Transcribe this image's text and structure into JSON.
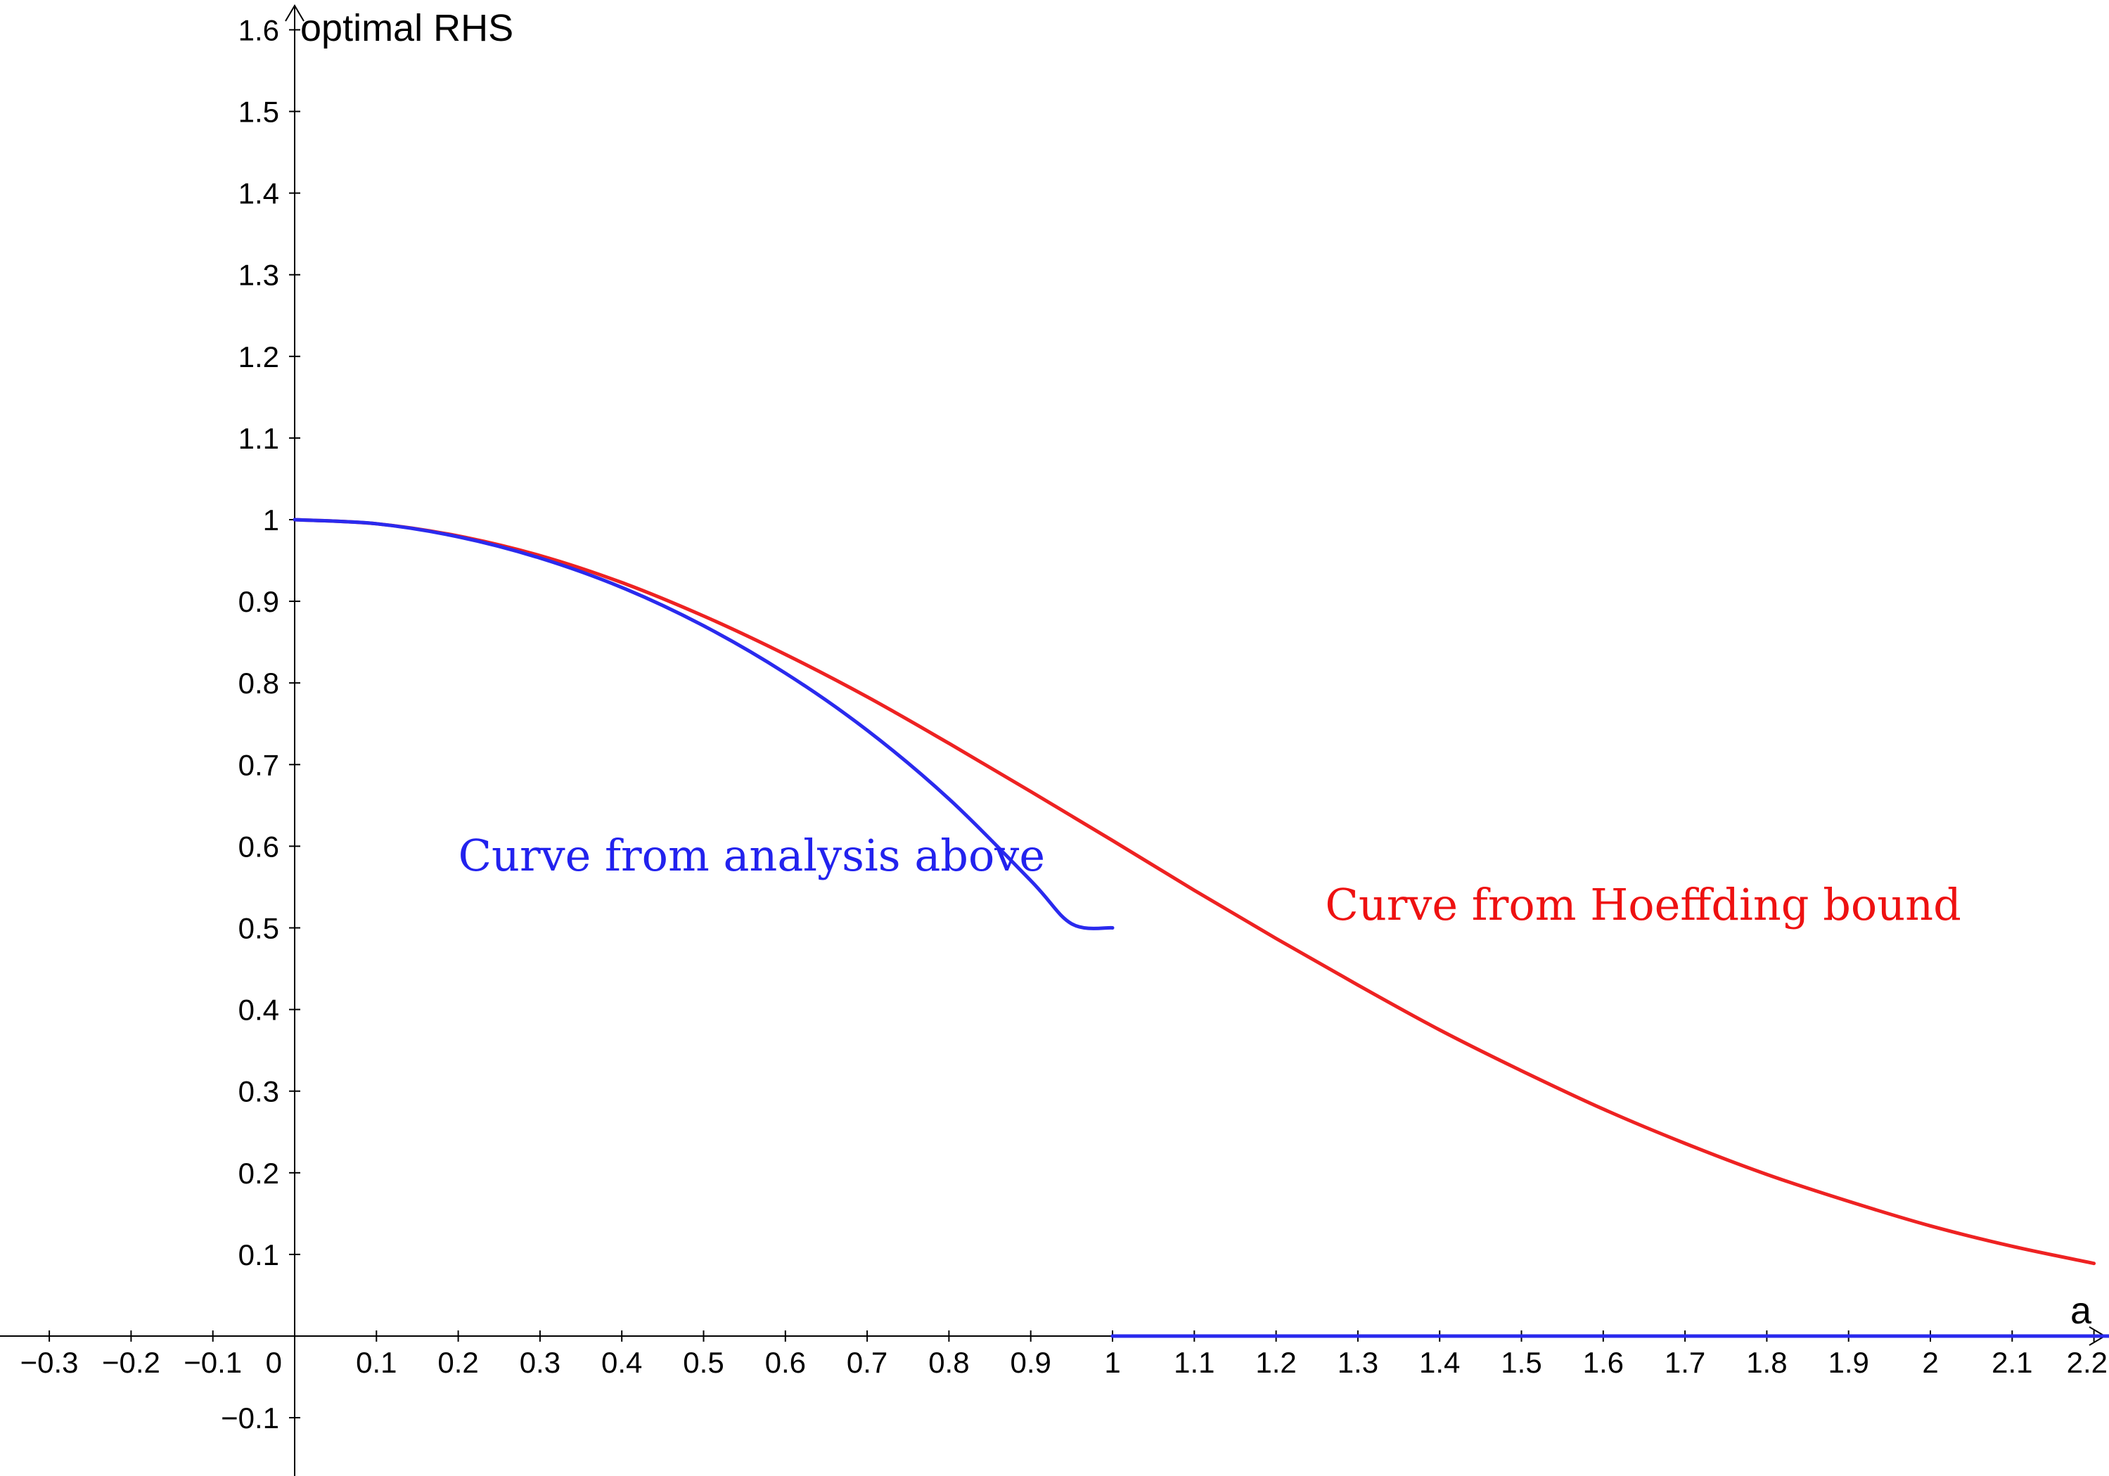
{
  "chart_data": {
    "type": "line",
    "title": "",
    "xlabel": "a",
    "ylabel": "optimal RHS",
    "xlim": [
      -0.36,
      2.22
    ],
    "ylim": [
      -0.17,
      1.62
    ],
    "grid": false,
    "legend": "none",
    "x_ticks": [
      -0.3,
      -0.2,
      -0.1,
      0,
      0.1,
      0.2,
      0.3,
      0.4,
      0.5,
      0.6,
      0.7,
      0.8,
      0.9,
      1,
      1.1,
      1.2,
      1.3,
      1.4,
      1.5,
      1.6,
      1.7,
      1.8,
      1.9,
      2,
      2.1,
      2.2
    ],
    "x_tick_labels": [
      "−0.3",
      "−0.2",
      "−0.1",
      "0",
      "0.1",
      "0.2",
      "0.3",
      "0.4",
      "0.5",
      "0.6",
      "0.7",
      "0.8",
      "0.9",
      "1",
      "1.1",
      "1.2",
      "1.3",
      "1.4",
      "1.5",
      "1.6",
      "1.7",
      "1.8",
      "1.9",
      "2",
      "2.1",
      "2.2"
    ],
    "y_ticks": [
      -0.1,
      0.1,
      0.2,
      0.3,
      0.4,
      0.5,
      0.6,
      0.7,
      0.8,
      0.9,
      1,
      1.1,
      1.2,
      1.3,
      1.4,
      1.5,
      1.6
    ],
    "y_tick_labels": [
      "−0.1",
      "0.1",
      "0.2",
      "0.3",
      "0.4",
      "0.5",
      "0.6",
      "0.7",
      "0.8",
      "0.9",
      "1",
      "1.1",
      "1.2",
      "1.3",
      "1.4",
      "1.5",
      "1.6"
    ],
    "series": [
      {
        "color": "#ee2222",
        "x": [
          0,
          0.1,
          0.2,
          0.3,
          0.4,
          0.5,
          0.6,
          0.7,
          0.8,
          0.9,
          1.0,
          1.1,
          1.2,
          1.3,
          1.4,
          1.5,
          1.6,
          1.7,
          1.8,
          1.9,
          2.0,
          2.1,
          2.2
        ],
        "y": [
          1.0,
          0.995,
          0.98,
          0.956,
          0.923,
          0.882,
          0.835,
          0.783,
          0.726,
          0.667,
          0.607,
          0.546,
          0.487,
          0.43,
          0.375,
          0.325,
          0.278,
          0.236,
          0.198,
          0.165,
          0.135,
          0.11,
          0.089
        ]
      },
      {
        "color": "#2a2aee",
        "x": [
          0,
          0.1,
          0.2,
          0.3,
          0.4,
          0.5,
          0.6,
          0.7,
          0.8,
          0.9,
          0.95,
          1.0
        ],
        "y": [
          1.0,
          0.995,
          0.979,
          0.953,
          0.917,
          0.87,
          0.812,
          0.742,
          0.658,
          0.558,
          0.505,
          0.5
        ]
      },
      {
        "color": "#2a2aee",
        "x": [
          1.0,
          2.22
        ],
        "y": [
          0,
          0
        ]
      }
    ],
    "annotations": [
      {
        "text": "Curve from analysis above",
        "x": 0.2,
        "y": 0.57,
        "color": "#2222ee"
      },
      {
        "text": "Curve from Hoeffding bound",
        "x": 1.26,
        "y": 0.51,
        "color": "#ee1111"
      }
    ]
  }
}
